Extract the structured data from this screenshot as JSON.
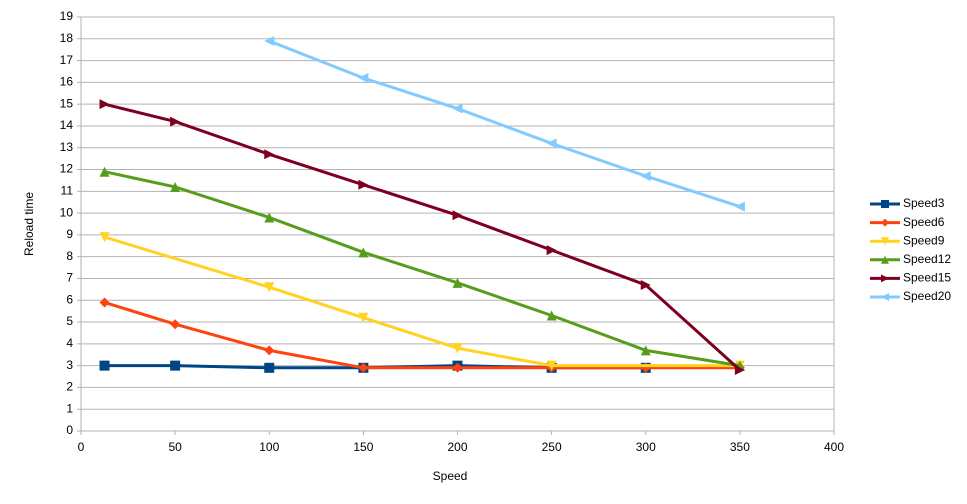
{
  "chart_data": {
    "type": "line",
    "x_label": "Speed",
    "y_label": "Reload time",
    "xlim": [
      0,
      400
    ],
    "xticks": [
      0,
      50,
      100,
      150,
      200,
      250,
      300,
      350,
      400
    ],
    "ylim": [
      0,
      19
    ],
    "yticks": [
      0,
      1,
      2,
      3,
      4,
      5,
      6,
      7,
      8,
      9,
      10,
      11,
      12,
      13,
      14,
      15,
      16,
      17,
      18,
      19
    ],
    "grid": true,
    "legend": "right",
    "series": [
      {
        "name": "Speed3",
        "color": "#004586",
        "marker": "square",
        "x": [
          12.5,
          50,
          100,
          150,
          200,
          250,
          300
        ],
        "values": [
          3,
          3,
          2.9,
          2.9,
          3,
          2.9,
          2.9
        ]
      },
      {
        "name": "Speed6",
        "color": "#ff420e",
        "marker": "diamond",
        "x": [
          12.5,
          50,
          100,
          150,
          200,
          250,
          300,
          350
        ],
        "values": [
          5.9,
          4.9,
          3.7,
          2.9,
          2.9,
          2.9,
          2.9,
          2.9
        ]
      },
      {
        "name": "Speed9",
        "color": "#ffd320",
        "marker": "down",
        "x": [
          12.5,
          100,
          150,
          200,
          250,
          350
        ],
        "values": [
          8.9,
          6.6,
          5.2,
          3.8,
          3,
          3
        ]
      },
      {
        "name": "Speed12",
        "color": "#579d1c",
        "marker": "up",
        "x": [
          12.5,
          50,
          100,
          150,
          200,
          250,
          300,
          350
        ],
        "values": [
          11.9,
          11.2,
          9.8,
          8.2,
          6.8,
          5.3,
          3.7,
          3
        ]
      },
      {
        "name": "Speed15",
        "color": "#7e0021",
        "marker": "right",
        "x": [
          12.5,
          50,
          100,
          150,
          200,
          250,
          300,
          350
        ],
        "values": [
          15,
          14.2,
          12.7,
          11.3,
          9.9,
          8.3,
          6.7,
          2.8
        ]
      },
      {
        "name": "Speed20",
        "color": "#83caff",
        "marker": "left",
        "x": [
          100,
          150,
          200,
          250,
          300,
          350
        ],
        "values": [
          17.9,
          16.2,
          14.8,
          13.2,
          11.7,
          10.3
        ]
      }
    ]
  }
}
